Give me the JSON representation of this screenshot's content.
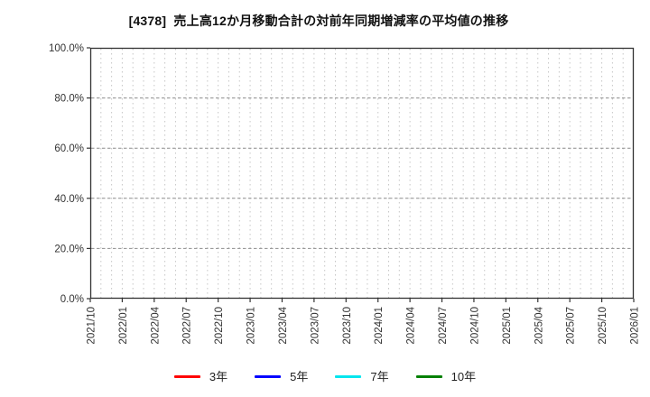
{
  "chart_data": {
    "type": "line",
    "title": "[4378]  売上高12か月移動合計の対前年同期増減率の平均値の推移",
    "x_tick_labels": [
      "2021/10",
      "2022/01",
      "2022/04",
      "2022/07",
      "2022/10",
      "2023/01",
      "2023/04",
      "2023/07",
      "2023/10",
      "2024/01",
      "2024/04",
      "2024/07",
      "2024/10",
      "2025/01",
      "2025/04",
      "2025/07",
      "2025/10",
      "2026/01"
    ],
    "x_months_per_tick": 3,
    "x_total_months": 51,
    "y_tick_labels": [
      "0.0%",
      "20.0%",
      "40.0%",
      "60.0%",
      "80.0%",
      "100.0%"
    ],
    "ylim": [
      0,
      100
    ],
    "grid": "on",
    "legend_position": "bottom",
    "plot_area_empty": true,
    "series": [
      {
        "name": "3年",
        "color": "#ff0000",
        "values": []
      },
      {
        "name": "5年",
        "color": "#0000ff",
        "values": []
      },
      {
        "name": "7年",
        "color": "#00e5ee",
        "values": []
      },
      {
        "name": "10年",
        "color": "#008000",
        "values": []
      }
    ],
    "colors": {
      "border": "#333333",
      "grid_vertical": "#c6c6c6",
      "grid_horizontal": "#8c8c8c",
      "tick_label": "#333333"
    }
  }
}
